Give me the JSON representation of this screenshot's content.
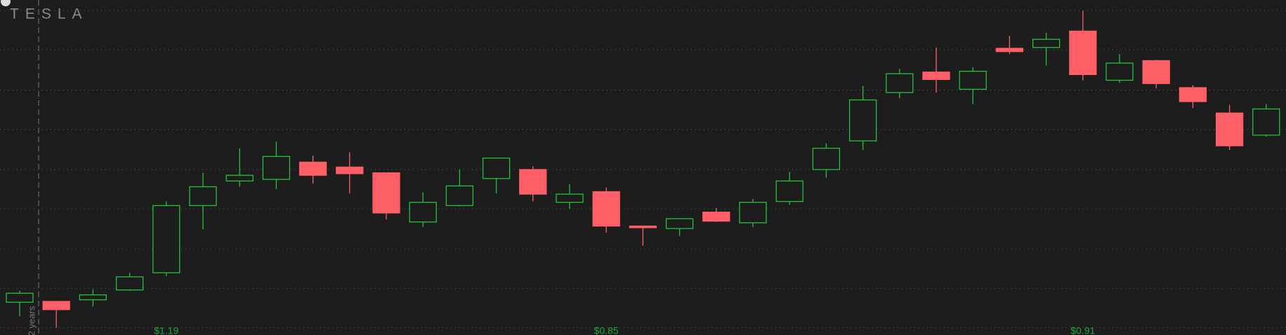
{
  "chart_data": {
    "type": "candlestick",
    "logo": "TESLA",
    "period_label": "2 years",
    "open": [
      40,
      41,
      43,
      55,
      76,
      158,
      188,
      190,
      211,
      205,
      198,
      138,
      158,
      191,
      202,
      162,
      175,
      133,
      130,
      150,
      137,
      163,
      202,
      237,
      296,
      321,
      300,
      350,
      351,
      371,
      311,
      335,
      302,
      271,
      244
    ],
    "high": [
      54,
      41,
      56,
      76,
      163,
      198,
      228,
      236,
      219,
      223,
      198,
      174,
      202,
      216,
      206,
      184,
      180,
      133,
      142,
      155,
      166,
      199,
      234,
      304,
      325,
      351,
      327,
      365,
      369,
      396,
      343,
      336,
      305,
      281,
      282
    ],
    "low": [
      23,
      9,
      35,
      54,
      72,
      129,
      181,
      178,
      185,
      173,
      141,
      132,
      157,
      173,
      163,
      154,
      125,
      109,
      121,
      138,
      132,
      159,
      192,
      226,
      289,
      296,
      282,
      343,
      329,
      311,
      308,
      301,
      277,
      226,
      242
    ],
    "close": [
      51,
      31,
      49,
      71,
      158,
      181,
      195,
      218,
      195,
      197,
      149,
      162,
      182,
      216,
      172,
      172,
      133,
      131,
      142,
      139,
      162,
      188,
      228,
      287,
      319,
      312,
      322,
      346,
      361,
      318,
      332,
      307,
      285,
      231,
      276
    ],
    "event_labels": [
      null,
      null,
      null,
      null,
      "$1.19",
      null,
      null,
      null,
      null,
      null,
      null,
      null,
      null,
      null,
      null,
      null,
      "$0.85",
      null,
      null,
      null,
      null,
      null,
      null,
      null,
      null,
      null,
      null,
      null,
      null,
      "$0.91",
      null,
      null,
      null,
      null,
      null
    ],
    "up_color": "#22c23a",
    "down_color": "#ff5f66",
    "event_color": "#1fa83a",
    "ylim": [
      0,
      409
    ],
    "yticks": [
      9,
      57,
      105,
      154,
      202,
      251,
      299,
      348,
      396
    ],
    "grid": true
  }
}
